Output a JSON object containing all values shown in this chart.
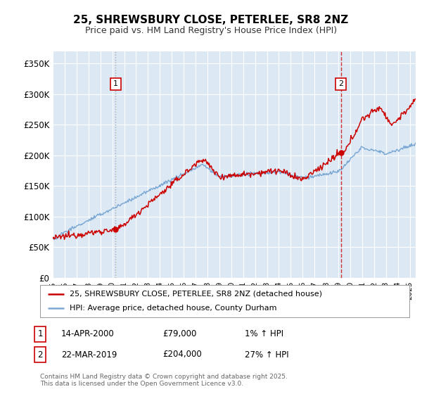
{
  "title": "25, SHREWSBURY CLOSE, PETERLEE, SR8 2NZ",
  "subtitle": "Price paid vs. HM Land Registry's House Price Index (HPI)",
  "ylim": [
    0,
    370000
  ],
  "yticks": [
    0,
    50000,
    100000,
    150000,
    200000,
    250000,
    300000,
    350000
  ],
  "ytick_labels": [
    "£0",
    "£50K",
    "£100K",
    "£150K",
    "£200K",
    "£250K",
    "£300K",
    "£350K"
  ],
  "xlim_start": 1995.0,
  "xlim_end": 2025.5,
  "background_color": "#dce9f5",
  "grid_color": "#ffffff",
  "red_color": "#cc0000",
  "blue_color": "#6699cc",
  "sale1_x": 2000.28,
  "sale1_y": 79000,
  "sale1_label": "1",
  "sale2_x": 2019.22,
  "sale2_y": 204000,
  "sale2_label": "2",
  "legend_line1": "25, SHREWSBURY CLOSE, PETERLEE, SR8 2NZ (detached house)",
  "legend_line2": "HPI: Average price, detached house, County Durham",
  "annot1_date": "14-APR-2000",
  "annot1_price": "£79,000",
  "annot1_hpi": "1% ↑ HPI",
  "annot2_date": "22-MAR-2019",
  "annot2_price": "£204,000",
  "annot2_hpi": "27% ↑ HPI",
  "footer": "Contains HM Land Registry data © Crown copyright and database right 2025.\nThis data is licensed under the Open Government Licence v3.0."
}
